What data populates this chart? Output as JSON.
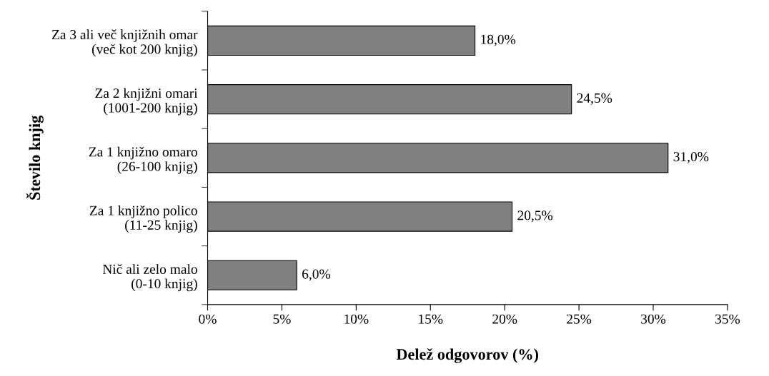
{
  "chart_data": {
    "type": "bar",
    "orientation": "horizontal",
    "xlabel": "Delež odgovorov (%)",
    "ylabel": "Število knjig",
    "categories": [
      "Za 3 ali več knjižnih omar\n(več kot 200 knjig)",
      "Za 2 knjižni omari\n(1001-200 knjig)",
      "Za 1 knjižno omaro\n(26-100 knjig)",
      "Za 1 knjižno polico\n(11-25 knjig)",
      "Nič ali zelo malo\n(0-10 knjig)"
    ],
    "values": [
      18.0,
      24.5,
      31.0,
      20.5,
      6.0
    ],
    "value_labels": [
      "18,0%",
      "24,5%",
      "31,0%",
      "20,5%",
      "6,0%"
    ],
    "color": "#808080",
    "xlim": [
      0,
      35
    ],
    "xticks": [
      {
        "value": 0,
        "label": "0%"
      },
      {
        "value": 5,
        "label": "5%"
      },
      {
        "value": 10,
        "label": "10%"
      },
      {
        "value": 15,
        "label": "15%"
      },
      {
        "value": 20,
        "label": "20%"
      },
      {
        "value": 25,
        "label": "25%"
      },
      {
        "value": 30,
        "label": "30%"
      },
      {
        "value": 35,
        "label": "35%"
      }
    ],
    "grid": false,
    "legend": false
  }
}
